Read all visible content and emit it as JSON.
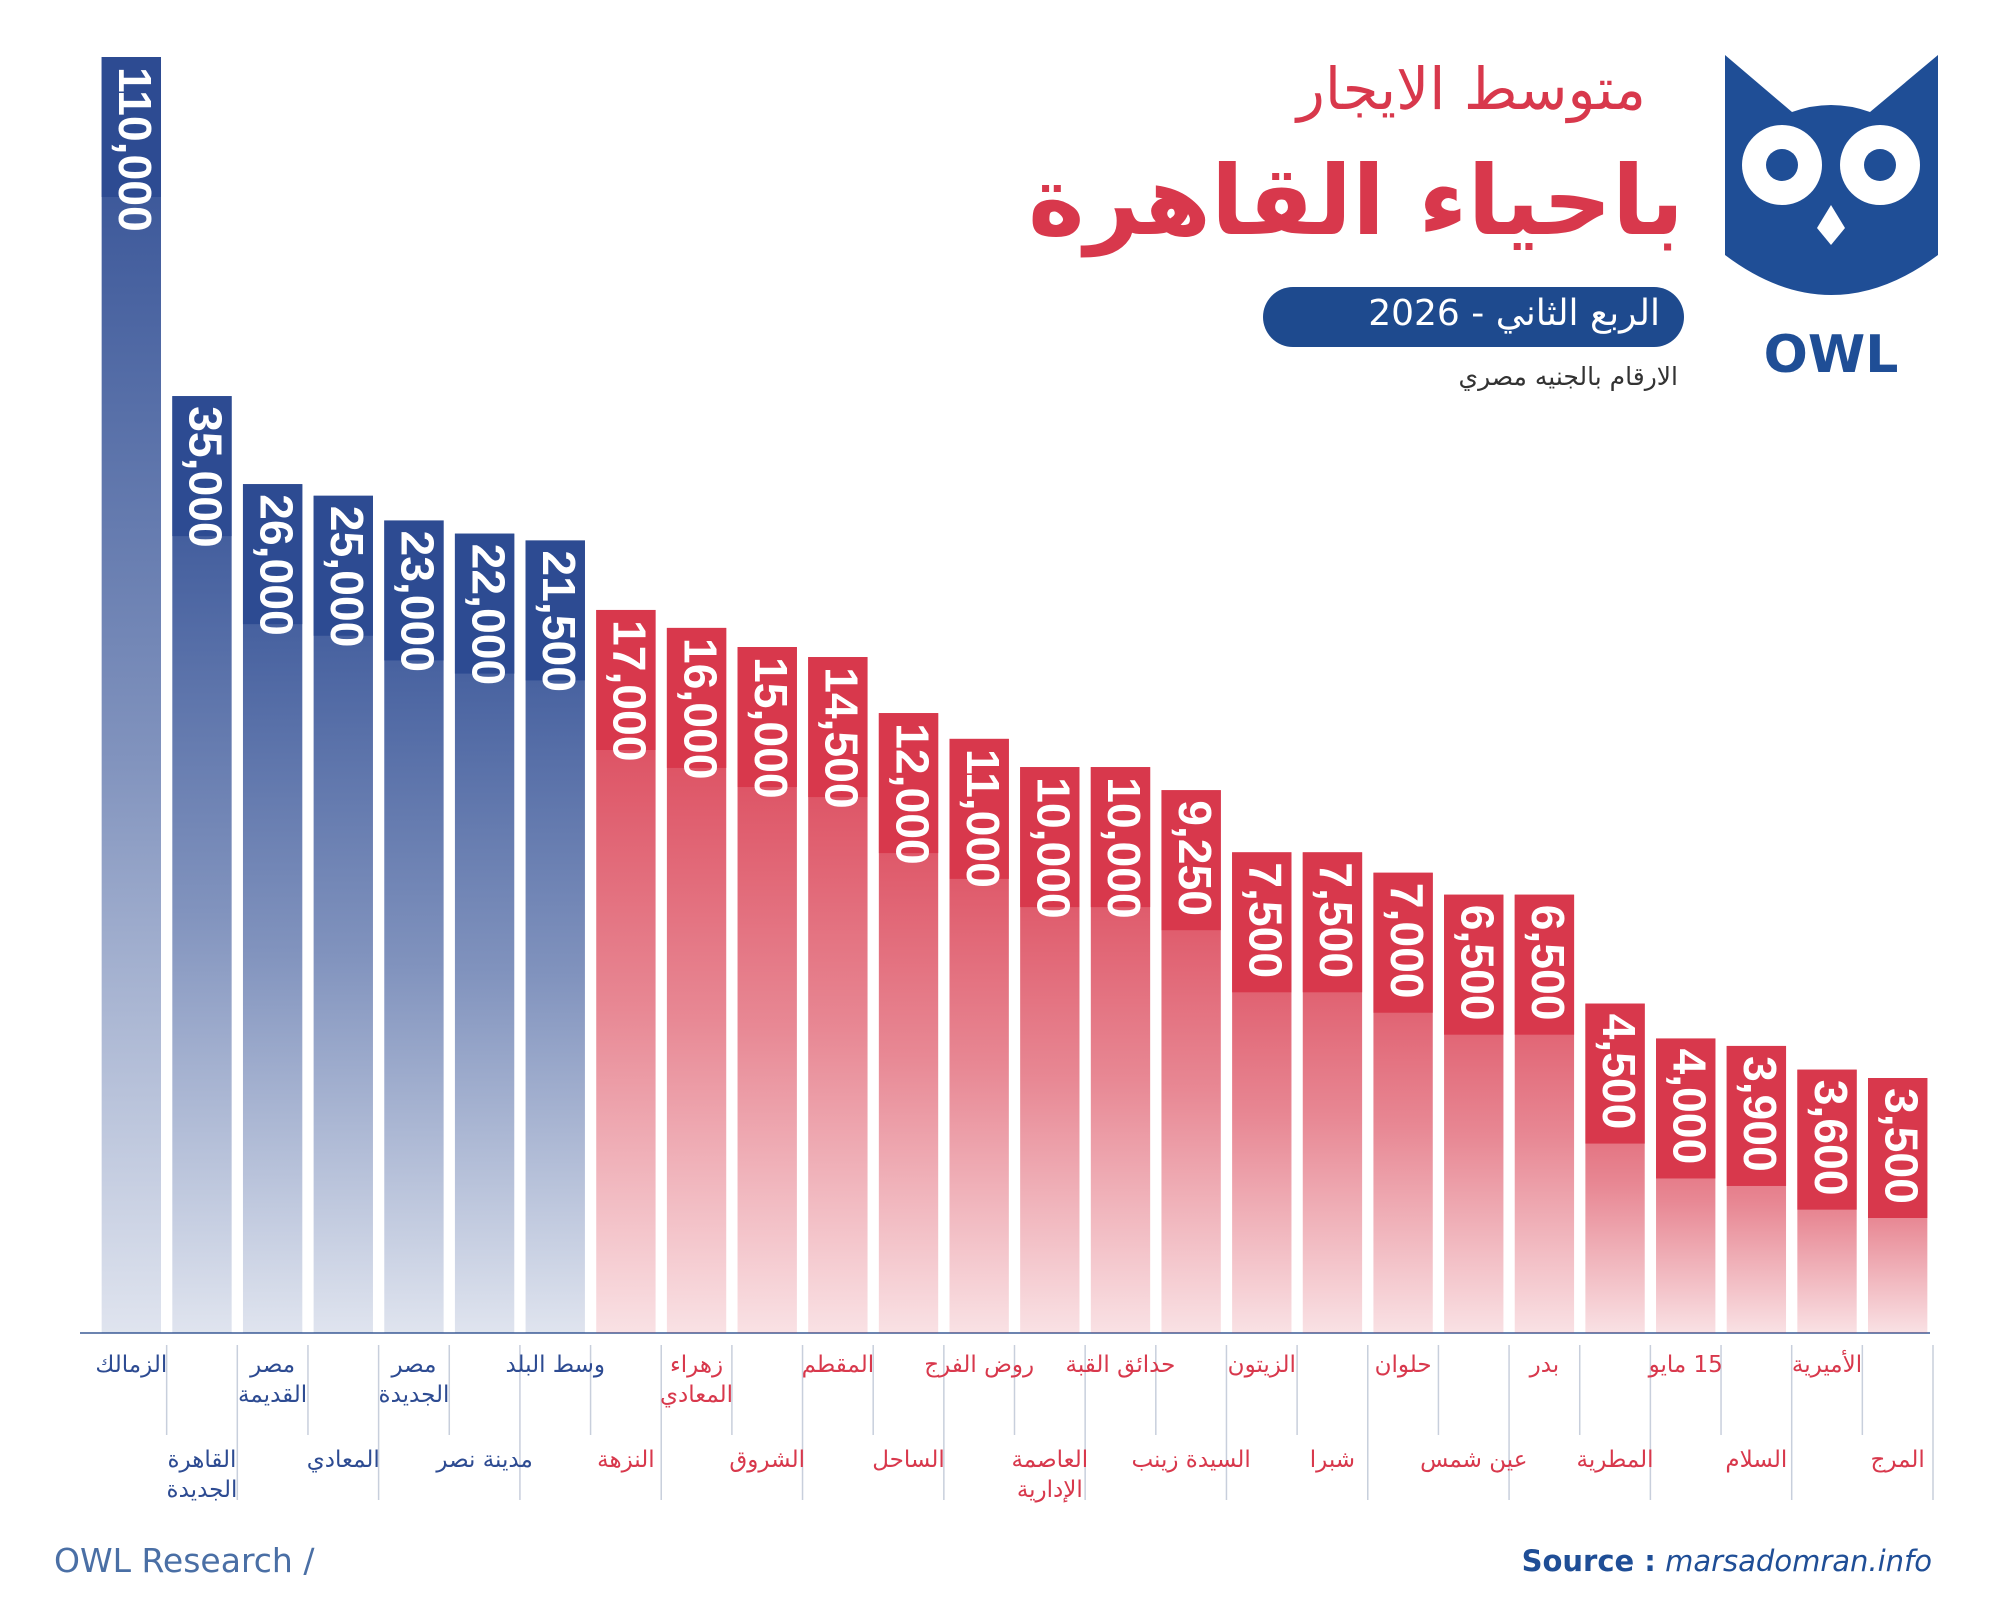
{
  "chart_data": {
    "type": "bar",
    "title": "متوسط الايجار",
    "subtitle": "باحياء القاهرة",
    "period": "الربع الثاني - 2026",
    "note": "الارقام بالجنيه مصري",
    "brand": "OWL",
    "footer": "OWL Research /",
    "source_label": "Source :",
    "source": "marsadomran.info",
    "categories": [
      "الزمالك",
      "القاهرة الجديدة",
      "مصر القديمة",
      "المعادي",
      "مصر الجديدة",
      "مدينة نصر",
      "وسط البلد",
      "النزهة",
      "زهراء المعادي",
      "الشروق",
      "المقطم",
      "الساحل",
      "روض الفرج",
      "العاصمة الإدارية",
      "حدائق القبة",
      "السيدة زينب",
      "الزيتون",
      "شبرا",
      "حلوان",
      "عين شمس",
      "بدر",
      "المطرية",
      "15 مايو",
      "السلام",
      "الأميرية",
      "المرج"
    ],
    "values": [
      110000,
      35000,
      26000,
      25000,
      23000,
      22000,
      21500,
      17000,
      16000,
      15000,
      14500,
      12000,
      11000,
      10000,
      10000,
      9250,
      7500,
      7500,
      7000,
      6500,
      6500,
      4500,
      4000,
      3900,
      3600,
      3500
    ],
    "value_labels": [
      "110,000",
      "35,000",
      "26,000",
      "25,000",
      "23,000",
      "22,000",
      "21,500",
      "17,000",
      "16,000",
      "15,000",
      "14,500",
      "12,000",
      "11,000",
      "10,000",
      "10,000",
      "9,250",
      "7,500",
      "7,500",
      "7,000",
      "6,500",
      "6,500",
      "4,500",
      "4,000",
      "3,900",
      "3,600",
      "3,500"
    ],
    "colors": [
      "#2d4b92",
      "#2d4b92",
      "#2d4b92",
      "#2d4b92",
      "#2d4b92",
      "#2d4b92",
      "#2d4b92",
      "#d8384c",
      "#d8384c",
      "#d8384c",
      "#d8384c",
      "#d8384c",
      "#d8384c",
      "#d8384c",
      "#d8384c",
      "#d8384c",
      "#d8384c",
      "#d8384c",
      "#d8384c",
      "#d8384c",
      "#d8384c",
      "#d8384c",
      "#d8384c",
      "#d8384c",
      "#d8384c",
      "#d8384c"
    ],
    "log_scale": true
  }
}
